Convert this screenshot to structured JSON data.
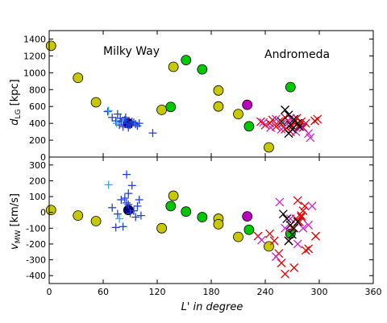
{
  "chart_data": [
    {
      "type": "scatter",
      "panel": "top",
      "ylabel": "d_LG [kpc]",
      "ylabel_main": "d",
      "ylabel_sub": "LG",
      "ylabel_unit": " [kpc]",
      "ylim": [
        0,
        1500
      ],
      "yticks": [
        0,
        200,
        400,
        600,
        800,
        1000,
        1200,
        1400
      ],
      "annotations": [
        "Milky Way",
        "Andromeda"
      ],
      "series": [
        {
          "marker": "circle",
          "color": "#c8c800",
          "points": [
            [
              2,
              1320
            ],
            [
              32,
              940
            ],
            [
              52,
              650
            ],
            [
              125,
              560
            ],
            [
              138,
              1070
            ],
            [
              188,
              600
            ],
            [
              188,
              790
            ],
            [
              210,
              510
            ],
            [
              244,
              115
            ]
          ]
        },
        {
          "marker": "circle",
          "color": "#00c800",
          "points": [
            [
              135,
              595
            ],
            [
              152,
              1150
            ],
            [
              170,
              1040
            ],
            [
              222,
              365
            ],
            [
              268,
              830
            ]
          ]
        },
        {
          "marker": "circle",
          "color": "#c000c0",
          "points": [
            [
              220,
              620
            ]
          ]
        },
        {
          "marker": "circle",
          "color": "#000080",
          "points": [
            [
              88,
              400
            ]
          ]
        },
        {
          "marker": "plus",
          "color": "#1f40e0",
          "points": [
            [
              65,
              540
            ],
            [
              70,
              470
            ],
            [
              74,
              430
            ],
            [
              76,
              510
            ],
            [
              78,
              380
            ],
            [
              80,
              420
            ],
            [
              82,
              360
            ],
            [
              84,
              440
            ],
            [
              86,
              400
            ],
            [
              88,
              350
            ],
            [
              90,
              380
            ],
            [
              92,
              420
            ],
            [
              94,
              410
            ],
            [
              96,
              390
            ],
            [
              98,
              370
            ],
            [
              100,
              400
            ],
            [
              85,
              470
            ],
            [
              79,
              460
            ],
            [
              115,
              285
            ]
          ]
        },
        {
          "marker": "plus",
          "color": "#33aaff",
          "points": [
            [
              66,
              550
            ],
            [
              75,
              400
            ]
          ]
        },
        {
          "marker": "x",
          "color": "#e60000",
          "points": [
            [
              235,
              420
            ],
            [
              240,
              380
            ],
            [
              245,
              400
            ],
            [
              248,
              440
            ],
            [
              252,
              360
            ],
            [
              255,
              420
            ],
            [
              258,
              390
            ],
            [
              262,
              470
            ],
            [
              265,
              430
            ],
            [
              270,
              370
            ],
            [
              272,
              410
            ],
            [
              275,
              460
            ],
            [
              278,
              380
            ],
            [
              280,
              420
            ],
            [
              282,
              350
            ],
            [
              285,
              400
            ],
            [
              295,
              430
            ],
            [
              298,
              450
            ],
            [
              268,
              300
            ],
            [
              262,
              330
            ]
          ]
        },
        {
          "marker": "x",
          "color": "#cc22cc",
          "points": [
            [
              238,
              410
            ],
            [
              246,
              350
            ],
            [
              252,
              450
            ],
            [
              258,
              330
            ],
            [
              264,
              390
            ],
            [
              268,
              460
            ],
            [
              274,
              300
            ],
            [
              280,
              360
            ],
            [
              288,
              280
            ],
            [
              290,
              230
            ]
          ]
        },
        {
          "marker": "x",
          "color": "#000000",
          "points": [
            [
              258,
              420
            ],
            [
              262,
              560
            ],
            [
              266,
              500
            ],
            [
              268,
              380
            ],
            [
              270,
              330
            ],
            [
              272,
              450
            ],
            [
              276,
              400
            ],
            [
              278,
              360
            ],
            [
              266,
              280
            ]
          ]
        }
      ]
    },
    {
      "type": "scatter",
      "panel": "bottom",
      "ylabel": "v_MW [km/s]",
      "ylabel_main": "v",
      "ylabel_sub": "MW",
      "ylabel_unit": " [km/s]",
      "xlabel": "L' in degree",
      "ylim": [
        -450,
        350
      ],
      "xlim": [
        0,
        360
      ],
      "xticks": [
        0,
        60,
        120,
        180,
        240,
        300,
        360
      ],
      "yticks": [
        -400,
        -300,
        -200,
        -100,
        0,
        100,
        200,
        300
      ],
      "series": [
        {
          "marker": "circle",
          "color": "#c8c800",
          "points": [
            [
              2,
              15
            ],
            [
              32,
              -20
            ],
            [
              52,
              -55
            ],
            [
              125,
              -100
            ],
            [
              138,
              105
            ],
            [
              188,
              -40
            ],
            [
              188,
              -75
            ],
            [
              210,
              -155
            ],
            [
              244,
              -215
            ]
          ]
        },
        {
          "marker": "circle",
          "color": "#00c800",
          "points": [
            [
              135,
              40
            ],
            [
              152,
              5
            ],
            [
              170,
              -30
            ],
            [
              222,
              -110
            ],
            [
              268,
              -135
            ]
          ]
        },
        {
          "marker": "circle",
          "color": "#c000c0",
          "points": [
            [
              220,
              -25
            ]
          ]
        },
        {
          "marker": "circle",
          "color": "#000080",
          "points": [
            [
              88,
              15
            ]
          ]
        },
        {
          "marker": "plus",
          "color": "#1f40e0",
          "points": [
            [
              86,
              240
            ],
            [
              92,
              170
            ],
            [
              88,
              120
            ],
            [
              84,
              90
            ],
            [
              80,
              80
            ],
            [
              76,
              -10
            ],
            [
              74,
              -95
            ],
            [
              82,
              -90
            ],
            [
              88,
              50
            ],
            [
              90,
              -5
            ],
            [
              94,
              10
            ],
            [
              96,
              -30
            ],
            [
              100,
              80
            ],
            [
              102,
              -20
            ],
            [
              98,
              40
            ],
            [
              70,
              30
            ],
            [
              86,
              60
            ]
          ]
        },
        {
          "marker": "plus",
          "color": "#33aaff",
          "points": [
            [
              66,
              175
            ],
            [
              78,
              -40
            ]
          ]
        },
        {
          "marker": "x",
          "color": "#e60000",
          "points": [
            [
              232,
              -150
            ],
            [
              245,
              -135
            ],
            [
              250,
              -180
            ],
            [
              255,
              -260
            ],
            [
              258,
              -320
            ],
            [
              262,
              -390
            ],
            [
              266,
              -180
            ],
            [
              270,
              -100
            ],
            [
              274,
              -40
            ],
            [
              276,
              75
            ],
            [
              278,
              -60
            ],
            [
              280,
              -20
            ],
            [
              282,
              10
            ],
            [
              285,
              -240
            ],
            [
              288,
              -230
            ],
            [
              296,
              -150
            ],
            [
              272,
              -350
            ],
            [
              280,
              -30
            ],
            [
              284,
              40
            ]
          ]
        },
        {
          "marker": "x",
          "color": "#cc22cc",
          "points": [
            [
              236,
              -175
            ],
            [
              252,
              -280
            ],
            [
              256,
              65
            ],
            [
              262,
              -100
            ],
            [
              268,
              -40
            ],
            [
              282,
              -100
            ],
            [
              288,
              -80
            ],
            [
              292,
              40
            ],
            [
              276,
              -200
            ]
          ]
        },
        {
          "marker": "x",
          "color": "#000000",
          "points": [
            [
              260,
              -10
            ],
            [
              264,
              -40
            ],
            [
              268,
              -80
            ],
            [
              270,
              -140
            ],
            [
              272,
              -100
            ],
            [
              276,
              -60
            ],
            [
              266,
              -180
            ]
          ]
        }
      ]
    }
  ]
}
